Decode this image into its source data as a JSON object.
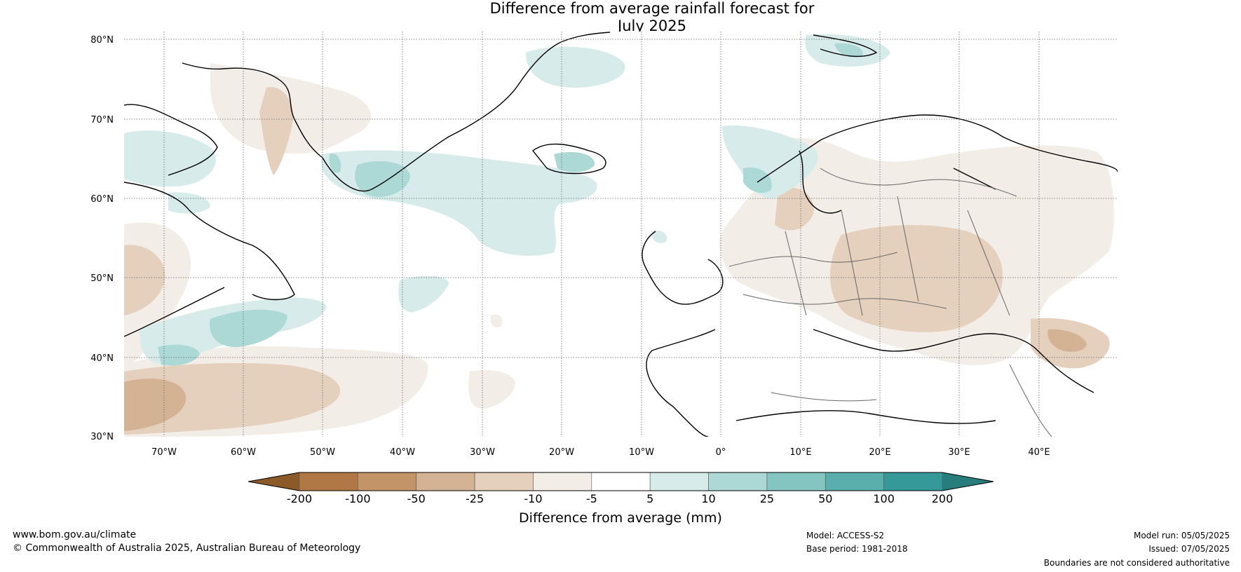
{
  "title": {
    "line1": "Difference from average rainfall forecast for",
    "line2": "July 2025"
  },
  "map": {
    "lat_labels": [
      "80°N",
      "70°N",
      "60°N",
      "50°N",
      "40°N",
      "30°N"
    ],
    "lon_labels": [
      "70°W",
      "60°W",
      "50°W",
      "40°W",
      "30°W",
      "20°W",
      "10°W",
      "0°",
      "10°E",
      "20°E",
      "30°E",
      "40°E"
    ]
  },
  "colorbar": {
    "label": "Difference from average (mm)",
    "ticks": [
      "-200",
      "-100",
      "-50",
      "-25",
      "-10",
      "-5",
      "5",
      "10",
      "25",
      "50",
      "100",
      "200"
    ],
    "colors": [
      "#8c5a28",
      "#b07845",
      "#c39468",
      "#d3b394",
      "#e5cfbd",
      "#f3ede7",
      "#ffffff",
      "#d6ebea",
      "#acd9d6",
      "#84c4c1",
      "#5aaeab",
      "#35999a",
      "#267d7c"
    ]
  },
  "footer": {
    "website": "www.bom.gov.au/climate",
    "copyright": "© Commonwealth of Australia 2025, Australian Bureau of Meteorology",
    "model": "Model: ACCESS-S2",
    "base_period": "Base period: 1981-2018",
    "model_run": "Model run: 05/05/2025",
    "issued": "Issued: 07/05/2025",
    "disclaimer": "Boundaries are not considered authoritative"
  }
}
